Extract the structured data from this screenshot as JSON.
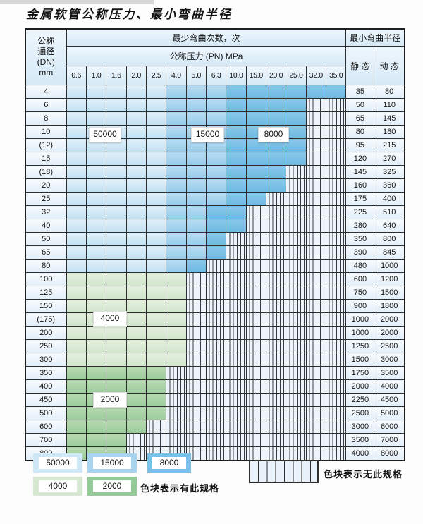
{
  "page": {
    "title": "金属软管公称压力、最小弯曲半径"
  },
  "table": {
    "header": {
      "dn_lines": [
        "公称",
        "通径",
        "(DN)",
        "mm"
      ],
      "bend_cycles": "最少弯曲次数，次",
      "min_bend_radius": "最小弯曲半径",
      "pressure": "公称压力 (PN) MPa",
      "pressure_values": [
        "0.6",
        "1.0",
        "1.6",
        "2.0",
        "2.5",
        "4.0",
        "5.0",
        "6.3",
        "10.0",
        "15.0",
        "20.0",
        "25.0",
        "32.0",
        "35.0"
      ],
      "static_label": "静 态",
      "dynamic_label": "动 态"
    },
    "cell_legend": {
      "L": "50000 cycles zone",
      "M": "15000 cycles zone",
      "D": "8000 cycles zone",
      "G": "4000 cycles zone",
      "E": "2000 cycles zone",
      "X": "no spec (hatched)"
    },
    "rows": [
      {
        "dn": "4",
        "cells": "LLLLLMMMDDDDDD",
        "static": "35",
        "dynamic": "80"
      },
      {
        "dn": "6",
        "cells": "LLLLLMMMDDDDXX",
        "static": "50",
        "dynamic": "110"
      },
      {
        "dn": "8",
        "cells": "LLLLLMMMDDDDXX",
        "static": "65",
        "dynamic": "145"
      },
      {
        "dn": "10",
        "cells": "LLLLLMMMDDDDXX",
        "static": "80",
        "dynamic": "180"
      },
      {
        "dn": "(12)",
        "cells": "LLLLLMMMDDDDXX",
        "static": "95",
        "dynamic": "215"
      },
      {
        "dn": "15",
        "cells": "LLLLLMMMDDDDXX",
        "static": "120",
        "dynamic": "270"
      },
      {
        "dn": "(18)",
        "cells": "LLLLLMMMDDDXXX",
        "static": "145",
        "dynamic": "325"
      },
      {
        "dn": "20",
        "cells": "LLLLLMMMDDDXXX",
        "static": "160",
        "dynamic": "360"
      },
      {
        "dn": "25",
        "cells": "LLLLLMMMDDXXXX",
        "static": "175",
        "dynamic": "400"
      },
      {
        "dn": "32",
        "cells": "LLLLLMMDDXXXXX",
        "static": "225",
        "dynamic": "510"
      },
      {
        "dn": "40",
        "cells": "LLLLLMMDDXXXXX",
        "static": "280",
        "dynamic": "640"
      },
      {
        "dn": "50",
        "cells": "LLLLLMMDXXXXXX",
        "static": "350",
        "dynamic": "800"
      },
      {
        "dn": "65",
        "cells": "LLLLLMMDXXXXXX",
        "static": "390",
        "dynamic": "845"
      },
      {
        "dn": "80",
        "cells": "LLLLLMDXXXXXXX",
        "static": "480",
        "dynamic": "1000"
      },
      {
        "dn": "100",
        "cells": "GGGGGGXXXXXXXX",
        "static": "600",
        "dynamic": "1200"
      },
      {
        "dn": "125",
        "cells": "GGGGGGXXXXXXXX",
        "static": "750",
        "dynamic": "1500"
      },
      {
        "dn": "150",
        "cells": "GGGGGGXXXXXXXX",
        "static": "900",
        "dynamic": "1800"
      },
      {
        "dn": "(175)",
        "cells": "GGGGGGXXXXXXXX",
        "static": "1000",
        "dynamic": "2000"
      },
      {
        "dn": "200",
        "cells": "GGGGGGXXXXXXXX",
        "static": "1000",
        "dynamic": "2000"
      },
      {
        "dn": "250",
        "cells": "GGGGGGXXXXXXXX",
        "static": "1250",
        "dynamic": "2500"
      },
      {
        "dn": "300",
        "cells": "GGGGGGXXXXXXXX",
        "static": "1500",
        "dynamic": "3000"
      },
      {
        "dn": "350",
        "cells": "EEEEEXXXXXXXXX",
        "static": "1750",
        "dynamic": "3500"
      },
      {
        "dn": "400",
        "cells": "EEEEEXXXXXXXXX",
        "static": "2000",
        "dynamic": "4000"
      },
      {
        "dn": "450",
        "cells": "EEEEEXXXXXXXXX",
        "static": "2250",
        "dynamic": "4500"
      },
      {
        "dn": "500",
        "cells": "EEEEEXXXXXXXXX",
        "static": "2500",
        "dynamic": "5000"
      },
      {
        "dn": "600",
        "cells": "EEEEXXXXXXXXXX",
        "static": "3000",
        "dynamic": "6000"
      },
      {
        "dn": "700",
        "cells": "EEEXXXXXXXXXXX",
        "static": "3500",
        "dynamic": "7000"
      },
      {
        "dn": "800",
        "cells": "EEEXXXXXXXXXXX",
        "static": "4000",
        "dynamic": "8000"
      }
    ]
  },
  "overlays": {
    "t50000": "50000",
    "t15000": "15000",
    "t8000": "8000",
    "t4000": "4000",
    "t2000": "2000"
  },
  "legend": {
    "blocks": [
      {
        "label": "50000",
        "color": "#cfe8f8"
      },
      {
        "label": "15000",
        "color": "#a9d4f0"
      },
      {
        "label": "8000",
        "color": "#79c0ea"
      },
      {
        "label": "4000",
        "color": "#d7e9d3"
      },
      {
        "label": "2000",
        "color": "#94c998"
      }
    ],
    "has_spec_note": "色块表示有此规格",
    "no_spec_note": "色块表示无此规格"
  }
}
